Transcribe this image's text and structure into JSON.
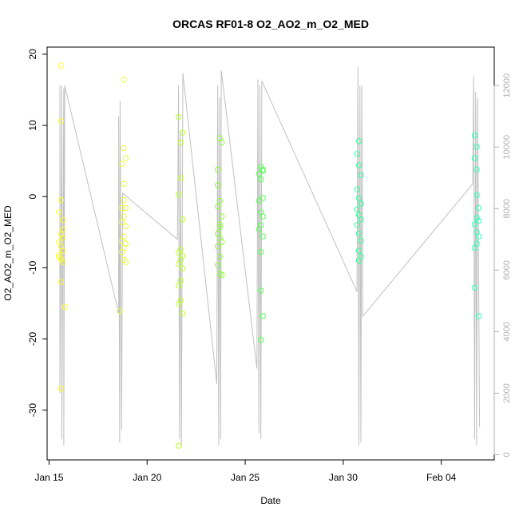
{
  "chart_data": {
    "type": "scatter",
    "title": "ORCAS RF01-8 O2_AO2_m_O2_MED",
    "xlabel": "Date",
    "ylabel": "O2_AO2_m_O2_MED",
    "x_ticks": [
      "Jan 15",
      "Jan 20",
      "Jan 25",
      "Jan 30",
      "Feb 04"
    ],
    "x_tick_days": [
      15,
      20,
      25,
      30,
      35
    ],
    "xlim_days": [
      14.9,
      37.7
    ],
    "y_ticks": [
      20,
      10,
      0,
      -10,
      -20,
      -30
    ],
    "ylim": [
      -37,
      21
    ],
    "y2_ticks": [
      0,
      2000,
      4000,
      6000,
      8000,
      10000,
      12000
    ],
    "y2lim": [
      -170,
      13250
    ],
    "grid": false,
    "series": [
      {
        "color": "#ffff33",
        "points": [
          [
            15.6,
            18.4
          ],
          [
            15.6,
            10.6
          ],
          [
            15.5,
            -2.2
          ],
          [
            15.7,
            -3.3
          ],
          [
            15.6,
            -5.3
          ],
          [
            15.7,
            -5.8
          ],
          [
            15.5,
            -6.4
          ],
          [
            15.6,
            -7.0
          ],
          [
            15.7,
            -7.6
          ],
          [
            15.5,
            -8.2
          ],
          [
            15.6,
            -8.8
          ],
          [
            15.7,
            -9.2
          ],
          [
            15.6,
            -12.0
          ],
          [
            15.8,
            -15.5
          ],
          [
            15.6,
            -27.0
          ],
          [
            15.6,
            -0.5
          ],
          [
            15.7,
            -4.6
          ],
          [
            15.5,
            -8.5
          ]
        ]
      },
      {
        "color": "#e8ff33",
        "points": [
          [
            18.8,
            16.4
          ],
          [
            18.8,
            6.8
          ],
          [
            18.9,
            5.4
          ],
          [
            18.7,
            4.6
          ],
          [
            18.8,
            1.8
          ],
          [
            18.7,
            -1.6
          ],
          [
            18.9,
            -1.6
          ],
          [
            18.8,
            -2.8
          ],
          [
            18.7,
            -3.6
          ],
          [
            18.9,
            -4.2
          ],
          [
            18.8,
            -5.6
          ],
          [
            18.7,
            -6.2
          ],
          [
            18.9,
            -6.6
          ],
          [
            18.8,
            -7.2
          ],
          [
            18.7,
            -7.8
          ],
          [
            18.8,
            -8.9
          ],
          [
            18.9,
            -9.2
          ],
          [
            18.6,
            -16.1
          ],
          [
            18.8,
            -0.5
          ]
        ]
      },
      {
        "color": "#bbff33",
        "points": [
          [
            21.6,
            11.2
          ],
          [
            21.8,
            9.0
          ],
          [
            21.7,
            7.6
          ],
          [
            21.7,
            2.6
          ],
          [
            21.6,
            0.3
          ],
          [
            21.8,
            -3.2
          ],
          [
            21.7,
            -7.4
          ],
          [
            21.6,
            -7.9
          ],
          [
            21.8,
            -8.3
          ],
          [
            21.7,
            -8.9
          ],
          [
            21.6,
            -9.5
          ],
          [
            21.8,
            -10.1
          ],
          [
            21.7,
            -11.8
          ],
          [
            21.6,
            -12.5
          ],
          [
            21.7,
            -14.6
          ],
          [
            21.6,
            -15.1
          ],
          [
            21.8,
            -16.4
          ],
          [
            21.6,
            -35.0
          ]
        ]
      },
      {
        "color": "#88ff33",
        "points": [
          [
            23.6,
            3.8
          ],
          [
            23.7,
            8.2
          ],
          [
            23.8,
            7.6
          ],
          [
            23.6,
            1.6
          ],
          [
            23.7,
            -0.6
          ],
          [
            23.6,
            -1.4
          ],
          [
            23.8,
            -2.8
          ],
          [
            23.7,
            -3.9
          ],
          [
            23.6,
            -5.2
          ],
          [
            23.7,
            -5.8
          ],
          [
            23.8,
            -6.4
          ],
          [
            23.6,
            -7.0
          ],
          [
            23.7,
            -8.4
          ],
          [
            23.6,
            -9.6
          ],
          [
            23.7,
            -10.8
          ],
          [
            23.8,
            -11.0
          ],
          [
            23.7,
            -4.3
          ]
        ]
      },
      {
        "color": "#55ff55",
        "points": [
          [
            25.8,
            4.2
          ],
          [
            25.9,
            3.6
          ],
          [
            25.7,
            3.2
          ],
          [
            25.8,
            2.4
          ],
          [
            25.9,
            -0.2
          ],
          [
            25.7,
            -0.6
          ],
          [
            25.8,
            -2.2
          ],
          [
            25.9,
            -2.8
          ],
          [
            25.8,
            -4.0
          ],
          [
            25.7,
            -4.6
          ],
          [
            25.9,
            -5.6
          ],
          [
            25.8,
            -7.8
          ],
          [
            25.8,
            -13.2
          ],
          [
            25.9,
            -16.8
          ],
          [
            25.8,
            -20.1
          ],
          [
            25.9,
            3.8
          ]
        ]
      },
      {
        "color": "#33ff99",
        "points": [
          [
            30.8,
            7.8
          ],
          [
            30.7,
            6.0
          ],
          [
            30.8,
            4.4
          ],
          [
            30.9,
            3.0
          ],
          [
            30.7,
            1.0
          ],
          [
            30.8,
            -0.2
          ],
          [
            30.9,
            -1.0
          ],
          [
            30.7,
            -1.8
          ],
          [
            30.8,
            -2.6
          ],
          [
            30.9,
            -3.2
          ],
          [
            30.7,
            -4.0
          ],
          [
            30.8,
            -5.2
          ],
          [
            30.9,
            -6.2
          ],
          [
            30.8,
            -7.6
          ],
          [
            30.9,
            -8.4
          ],
          [
            30.8,
            -9.0
          ]
        ]
      },
      {
        "color": "#33ffbb",
        "points": [
          [
            36.7,
            8.6
          ],
          [
            36.8,
            7.0
          ],
          [
            36.7,
            5.4
          ],
          [
            36.8,
            3.8
          ],
          [
            36.8,
            0.2
          ],
          [
            36.9,
            -1.6
          ],
          [
            36.8,
            -3.0
          ],
          [
            36.9,
            -3.4
          ],
          [
            36.7,
            -3.9
          ],
          [
            36.8,
            -5.0
          ],
          [
            36.9,
            -5.6
          ],
          [
            36.8,
            -6.6
          ],
          [
            36.7,
            -7.2
          ],
          [
            36.7,
            -12.8
          ],
          [
            36.9,
            -16.8
          ]
        ]
      }
    ],
    "altitude_line": {
      "color": "#c0c0c0",
      "points": [
        [
          15.55,
          12000
        ],
        [
          15.55,
          2000
        ],
        [
          15.65,
          12000
        ],
        [
          15.65,
          500
        ],
        [
          15.75,
          11900
        ],
        [
          15.75,
          300
        ],
        [
          15.8,
          12000
        ],
        [
          18.55,
          4600
        ],
        [
          18.55,
          11000
        ],
        [
          18.6,
          400
        ],
        [
          18.62,
          11500
        ],
        [
          18.7,
          800
        ],
        [
          18.75,
          8500
        ],
        [
          21.55,
          7000
        ],
        [
          21.6,
          12000
        ],
        [
          21.65,
          500
        ],
        [
          21.7,
          10500
        ],
        [
          21.75,
          300
        ],
        [
          21.82,
          12400
        ],
        [
          23.55,
          2300
        ],
        [
          23.6,
          12000
        ],
        [
          23.65,
          300
        ],
        [
          23.7,
          11600
        ],
        [
          23.75,
          500
        ],
        [
          23.78,
          12500
        ],
        [
          25.6,
          2800
        ],
        [
          25.65,
          12200
        ],
        [
          25.7,
          700
        ],
        [
          25.75,
          12000
        ],
        [
          25.8,
          500
        ],
        [
          25.85,
          12150
        ],
        [
          30.7,
          5300
        ],
        [
          30.75,
          12600
        ],
        [
          30.8,
          300
        ],
        [
          30.85,
          12000
        ],
        [
          30.9,
          400
        ],
        [
          30.95,
          12000
        ],
        [
          31.0,
          4500
        ],
        [
          36.6,
          8800
        ],
        [
          36.65,
          12300
        ],
        [
          36.7,
          500
        ],
        [
          36.75,
          11800
        ],
        [
          36.8,
          300
        ],
        [
          36.85,
          11600
        ],
        [
          36.95,
          900
        ]
      ]
    }
  }
}
